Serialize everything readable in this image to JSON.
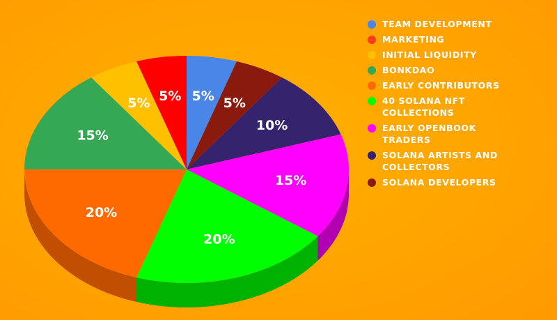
{
  "chart_data": {
    "type": "pie",
    "title": "",
    "slices": [
      {
        "label": "Team Development",
        "value": 5,
        "value_label": "5%",
        "color": "#4a86e8",
        "side_color": "#2f5fb0"
      },
      {
        "label": "Solana Developers",
        "value": 5,
        "value_label": "5%",
        "color": "#8b1a0e",
        "side_color": "#5e1008"
      },
      {
        "label": "Solana Artists and Collectors",
        "value": 10,
        "value_label": "10%",
        "color": "#35246d",
        "side_color": "#221647"
      },
      {
        "label": "Early Openbook Traders",
        "value": 15,
        "value_label": "15%",
        "color": "#ff00ff",
        "side_color": "#b000b0"
      },
      {
        "label": "40 Solana NFT Collections",
        "value": 20,
        "value_label": "20%",
        "color": "#00ff00",
        "side_color": "#00b200"
      },
      {
        "label": "Early Contributors",
        "value": 20,
        "value_label": "20%",
        "color": "#ff6a00",
        "side_color": "#c24e00"
      },
      {
        "label": "BonkDAO",
        "value": 15,
        "value_label": "15%",
        "color": "#34a853",
        "side_color": "#1f7a39"
      },
      {
        "label": "Initial Liquidity",
        "value": 5,
        "value_label": "5%",
        "color": "#ffc000",
        "side_color": "#c99600"
      },
      {
        "label": "Marketing",
        "value": 5,
        "value_label": "5%",
        "color": "#ff0000",
        "side_color": "#b80000"
      }
    ]
  },
  "legend": {
    "items": [
      {
        "label": "TEAM DEVELOPMENT",
        "color": "#4a86e8"
      },
      {
        "label": "MARKETING",
        "color": "#ff3b1a"
      },
      {
        "label": "INITIAL LIQUIDITY",
        "color": "#ffc000"
      },
      {
        "label": "BONKDAO",
        "color": "#34a853"
      },
      {
        "label": "EARLY CONTRIBUTORS",
        "color": "#ff6a00"
      },
      {
        "label": "40 SOLANA NFT COLLECTIONS",
        "color": "#00ff00"
      },
      {
        "label": "EARLY OPENBOOK TRADERS",
        "color": "#ff00ff"
      },
      {
        "label": "SOLANA ARTISTS AND COLLECTORS",
        "color": "#35246d"
      },
      {
        "label": "SOLANA DEVELOPERS",
        "color": "#8b1a0e"
      }
    ]
  }
}
